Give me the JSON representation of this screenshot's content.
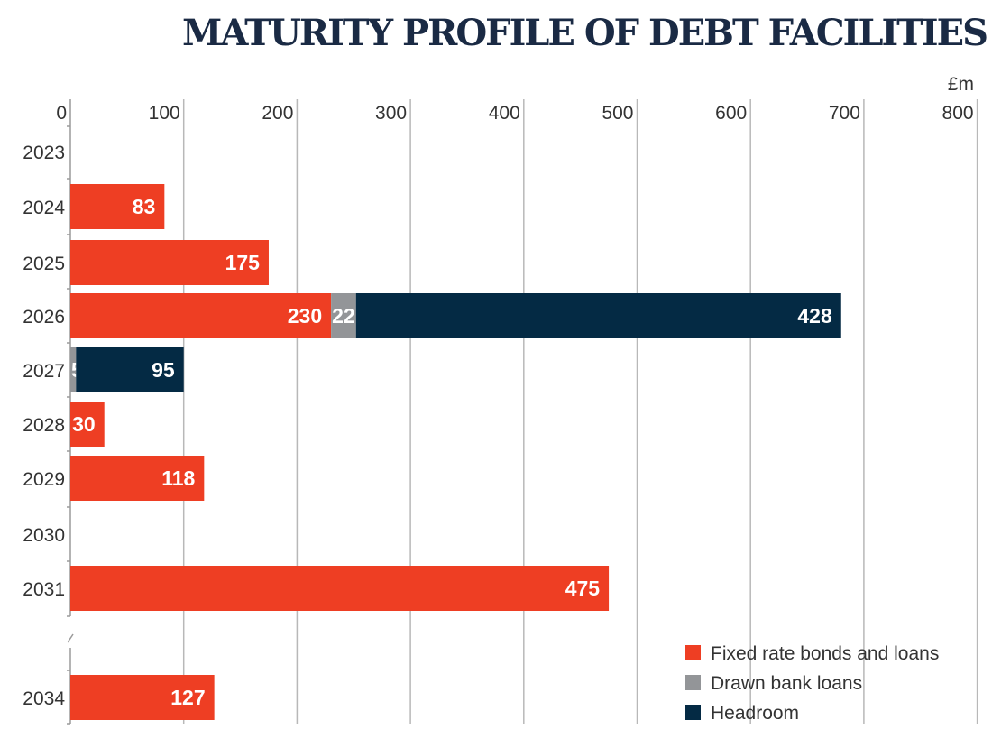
{
  "chart_data": {
    "type": "bar",
    "orientation": "horizontal",
    "stacked": true,
    "title": "MATURITY PROFILE OF DEBT FACILITIES",
    "unit_label": "£m",
    "xlim": [
      0,
      800
    ],
    "x_ticks": [
      0,
      100,
      200,
      300,
      400,
      500,
      600,
      700,
      800
    ],
    "grid": true,
    "legend_position": "bottom-right",
    "axis_break_between": [
      "2031",
      "2034"
    ],
    "categories": [
      "2023",
      "2024",
      "2025",
      "2026",
      "2027",
      "2028",
      "2029",
      "2030",
      "2031",
      "2034"
    ],
    "series": [
      {
        "name": "Fixed rate bonds and loans",
        "color": "#ee3e23",
        "values": [
          0,
          83,
          175,
          230,
          0,
          30,
          118,
          0,
          475,
          127
        ]
      },
      {
        "name": "Drawn bank loans",
        "color": "#939598",
        "values": [
          0,
          0,
          0,
          22,
          5,
          0,
          0,
          0,
          0,
          0
        ]
      },
      {
        "name": "Headroom",
        "color": "#042a44",
        "values": [
          0,
          0,
          0,
          428,
          95,
          0,
          0,
          0,
          0,
          0
        ]
      }
    ]
  }
}
